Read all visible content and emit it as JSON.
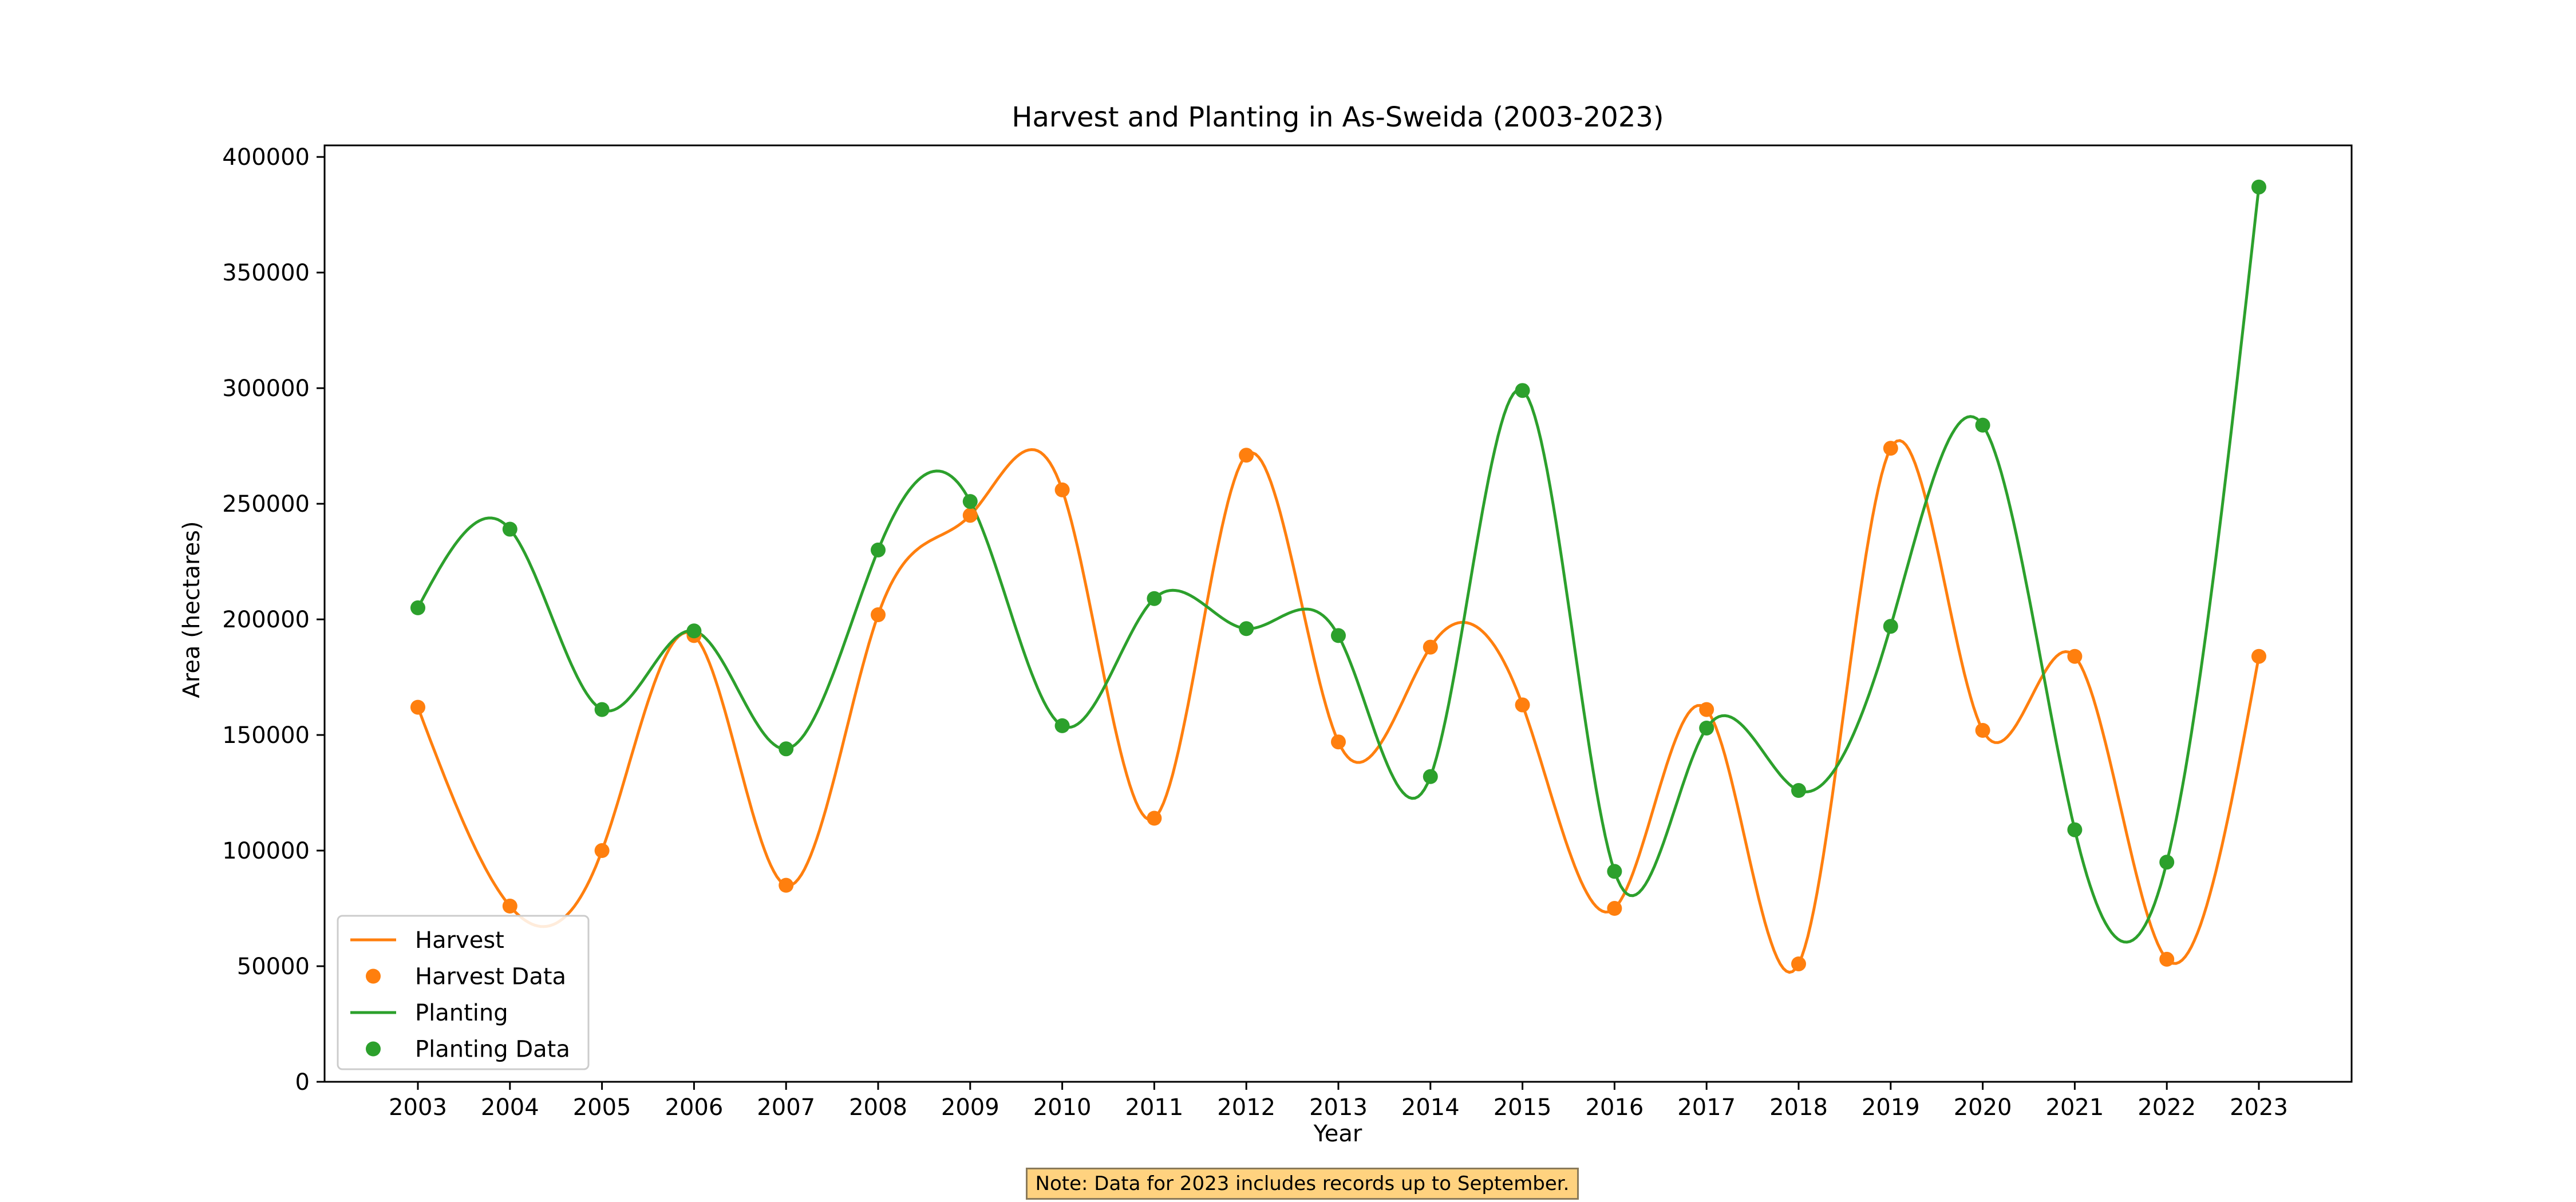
{
  "chart_data": {
    "type": "line",
    "title": "Harvest and Planting in As-Sweida (2003-2023)",
    "xlabel": "Year",
    "ylabel": "Area (hectares)",
    "ylim": [
      0,
      405000
    ],
    "y_ticks": [
      0,
      50000,
      100000,
      150000,
      200000,
      250000,
      300000,
      350000,
      400000
    ],
    "categories": [
      "2003",
      "2004",
      "2005",
      "2006",
      "2007",
      "2008",
      "2009",
      "2010",
      "2011",
      "2012",
      "2013",
      "2014",
      "2015",
      "2016",
      "2017",
      "2018",
      "2019",
      "2020",
      "2021",
      "2022",
      "2023"
    ],
    "smoothed": true,
    "grid": false,
    "legend_position": "lower-left",
    "legend": [
      "Harvest",
      "Harvest Data",
      "Planting",
      "Planting Data"
    ],
    "series": [
      {
        "name": "Harvest",
        "color": "#ff7f0e",
        "values": [
          162000,
          76000,
          100000,
          193000,
          85000,
          202000,
          245000,
          256000,
          114000,
          271000,
          147000,
          188000,
          163000,
          75000,
          161000,
          51000,
          274000,
          152000,
          184000,
          53000,
          184000
        ]
      },
      {
        "name": "Planting",
        "color": "#2ca02c",
        "values": [
          205000,
          239000,
          161000,
          195000,
          144000,
          230000,
          251000,
          154000,
          209000,
          196000,
          193000,
          132000,
          299000,
          91000,
          153000,
          126000,
          197000,
          284000,
          109000,
          95000,
          387000
        ]
      }
    ]
  },
  "note": {
    "text": "Note: Data for 2023 includes records up to September.",
    "background": "#ffd27f"
  }
}
